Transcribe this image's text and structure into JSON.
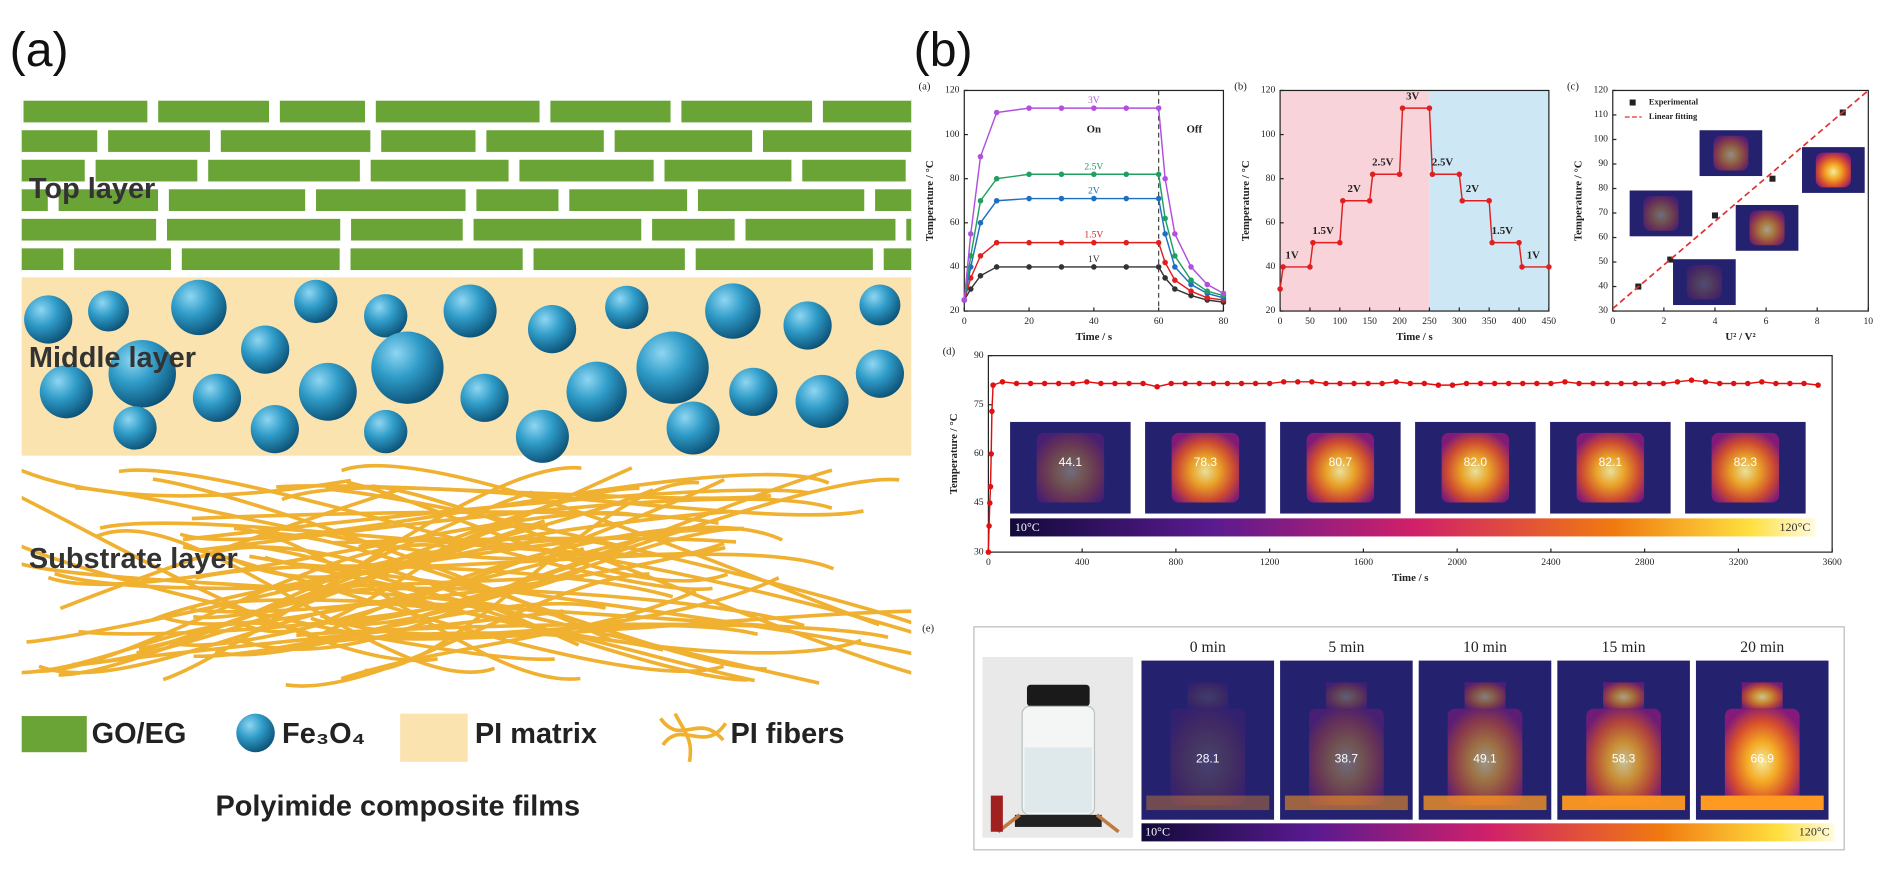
{
  "panel_a": {
    "label": "(a)",
    "layers": [
      "Top layer",
      "Middle layer",
      "Substrate layer"
    ],
    "legend": [
      "GO/EG",
      "Fe₃O₄",
      "PI matrix",
      "PI fibers"
    ],
    "caption": "Polyimide composite films"
  },
  "panel_b_label": "(b)",
  "chart_data": [
    {
      "type": "line",
      "label": "(a)",
      "xlabel": "Time / s",
      "ylabel": "Temperature / °C",
      "x": [
        0,
        2,
        5,
        10,
        20,
        30,
        40,
        50,
        60,
        62,
        65,
        70,
        75,
        80
      ],
      "series": [
        {
          "name": "1V",
          "color": "#333333",
          "values": [
            25,
            30,
            36,
            40,
            40,
            40,
            40,
            40,
            40,
            35,
            30,
            27,
            25,
            24
          ]
        },
        {
          "name": "1.5V",
          "color": "#e02020",
          "values": [
            25,
            35,
            45,
            51,
            51,
            51,
            51,
            51,
            51,
            42,
            34,
            29,
            26,
            25
          ]
        },
        {
          "name": "2V",
          "color": "#1f6fc0",
          "values": [
            25,
            40,
            60,
            70,
            71,
            71,
            71,
            71,
            71,
            55,
            40,
            32,
            28,
            26
          ]
        },
        {
          "name": "2.5V",
          "color": "#20a060",
          "values": [
            25,
            45,
            70,
            80,
            82,
            82,
            82,
            82,
            82,
            62,
            45,
            34,
            29,
            27
          ]
        },
        {
          "name": "3V",
          "color": "#b050e0",
          "values": [
            25,
            55,
            90,
            110,
            112,
            112,
            112,
            112,
            112,
            80,
            55,
            40,
            32,
            28
          ]
        }
      ],
      "annotations": [
        {
          "text": "On",
          "x": 40,
          "y": 102
        },
        {
          "text": "Off",
          "x": 71,
          "y": 102
        }
      ],
      "vline": 60,
      "xlim": [
        0,
        80
      ],
      "xticks": [
        0,
        20,
        40,
        60,
        80
      ],
      "ylim": [
        20,
        120
      ],
      "yticks": [
        20,
        40,
        60,
        80,
        100,
        120
      ]
    },
    {
      "type": "line",
      "label": "(b)",
      "xlabel": "Time / s",
      "ylabel": "Temperature / °C",
      "x": [
        0,
        5,
        50,
        55,
        100,
        105,
        150,
        155,
        200,
        205,
        250,
        255,
        300,
        305,
        350,
        355,
        400,
        405,
        450
      ],
      "series": [
        {
          "color": "#e02020",
          "values": [
            30,
            40,
            40,
            51,
            51,
            70,
            70,
            82,
            82,
            112,
            112,
            82,
            82,
            70,
            70,
            51,
            51,
            40,
            40
          ]
        }
      ],
      "regions": [
        {
          "x": [
            0,
            250
          ],
          "color": "#f8d3da"
        },
        {
          "x": [
            250,
            450
          ],
          "color": "#cde7f5"
        }
      ],
      "annotations": [
        {
          "text": "1V",
          "x": 20,
          "y": 45
        },
        {
          "text": "1.5V",
          "x": 72,
          "y": 56
        },
        {
          "text": "2V",
          "x": 124,
          "y": 75
        },
        {
          "text": "2.5V",
          "x": 172,
          "y": 87
        },
        {
          "text": "3V",
          "x": 222,
          "y": 117
        },
        {
          "text": "2.5V",
          "x": 272,
          "y": 87
        },
        {
          "text": "2V",
          "x": 322,
          "y": 75
        },
        {
          "text": "1.5V",
          "x": 372,
          "y": 56
        },
        {
          "text": "1V",
          "x": 424,
          "y": 45
        }
      ],
      "xlim": [
        0,
        450
      ],
      "xticks": [
        0,
        50,
        100,
        150,
        200,
        250,
        300,
        350,
        400,
        450
      ],
      "ylim": [
        20,
        120
      ],
      "yticks": [
        20,
        40,
        60,
        80,
        100,
        120
      ]
    },
    {
      "type": "scatter",
      "label": "(c)",
      "xlabel": "U² / V²",
      "ylabel": "Temperature / °C",
      "series": [
        {
          "name": "Experimental",
          "color": "#222222",
          "x": [
            1,
            2.25,
            4,
            6.25,
            9
          ],
          "values": [
            40,
            51,
            69,
            84,
            111
          ]
        },
        {
          "name": "Linear fitting",
          "color": "#e03030",
          "dashed": true,
          "x": [
            0,
            10
          ],
          "values": [
            31,
            120
          ]
        }
      ],
      "legend": "upper left",
      "xlim": [
        0,
        10
      ],
      "xticks": [
        0,
        2,
        4,
        6,
        8,
        10
      ],
      "ylim": [
        30,
        120
      ],
      "yticks": [
        30,
        40,
        50,
        60,
        70,
        80,
        90,
        100,
        110,
        120
      ]
    },
    {
      "type": "line",
      "label": "(d)",
      "xlabel": "Time / s",
      "ylabel": "Temperature / °C",
      "x": [
        0,
        3,
        6,
        9,
        12,
        15,
        20,
        60,
        120,
        180,
        240,
        300,
        360,
        420,
        480,
        540,
        600,
        660,
        720,
        780,
        840,
        900,
        960,
        1020,
        1080,
        1140,
        1200,
        1260,
        1320,
        1380,
        1440,
        1500,
        1560,
        1620,
        1680,
        1740,
        1800,
        1860,
        1920,
        1980,
        2040,
        2100,
        2160,
        2220,
        2280,
        2340,
        2400,
        2460,
        2520,
        2580,
        2640,
        2700,
        2760,
        2820,
        2880,
        2940,
        3000,
        3060,
        3120,
        3180,
        3240,
        3300,
        3360,
        3420,
        3480,
        3540
      ],
      "series": [
        {
          "color": "#e01010",
          "values": [
            30,
            38,
            45,
            50,
            60,
            73,
            81,
            82,
            81.5,
            81.5,
            81.5,
            81.5,
            81.5,
            82,
            81.5,
            81.5,
            81.5,
            81.5,
            80.5,
            81.5,
            81.5,
            81.5,
            81.5,
            81.5,
            81.5,
            81.5,
            81.5,
            82,
            82,
            82,
            81.5,
            81.5,
            81.5,
            81.5,
            81.5,
            82,
            81.5,
            81.5,
            81,
            81,
            81.5,
            81.5,
            81.5,
            81.5,
            81.5,
            81.5,
            81.5,
            82,
            81.5,
            81.5,
            81.5,
            81.5,
            81.5,
            81.5,
            81.5,
            82,
            82.5,
            82,
            81.5,
            81.5,
            81.5,
            82,
            81.5,
            81.5,
            81.5,
            81
          ]
        }
      ],
      "insets": [
        "44.1",
        "78.3",
        "80.7",
        "82.0",
        "82.1",
        "82.3"
      ],
      "colorbar": [
        "10°C",
        "120°C"
      ],
      "xlim": [
        0,
        3600
      ],
      "xticks": [
        0,
        400,
        800,
        1200,
        1600,
        2000,
        2400,
        2800,
        3200,
        3600
      ],
      "ylim": [
        30,
        90
      ],
      "yticks": [
        30,
        45,
        60,
        75,
        90
      ]
    }
  ],
  "panel_e": {
    "label": "(e)",
    "times": [
      "0 min",
      "5 min",
      "10 min",
      "15 min",
      "20 min"
    ],
    "temps": [
      "28.1",
      "38.7",
      "49.1",
      "58.3",
      "66.9"
    ],
    "colorbar": [
      "10°C",
      "120°C"
    ]
  }
}
